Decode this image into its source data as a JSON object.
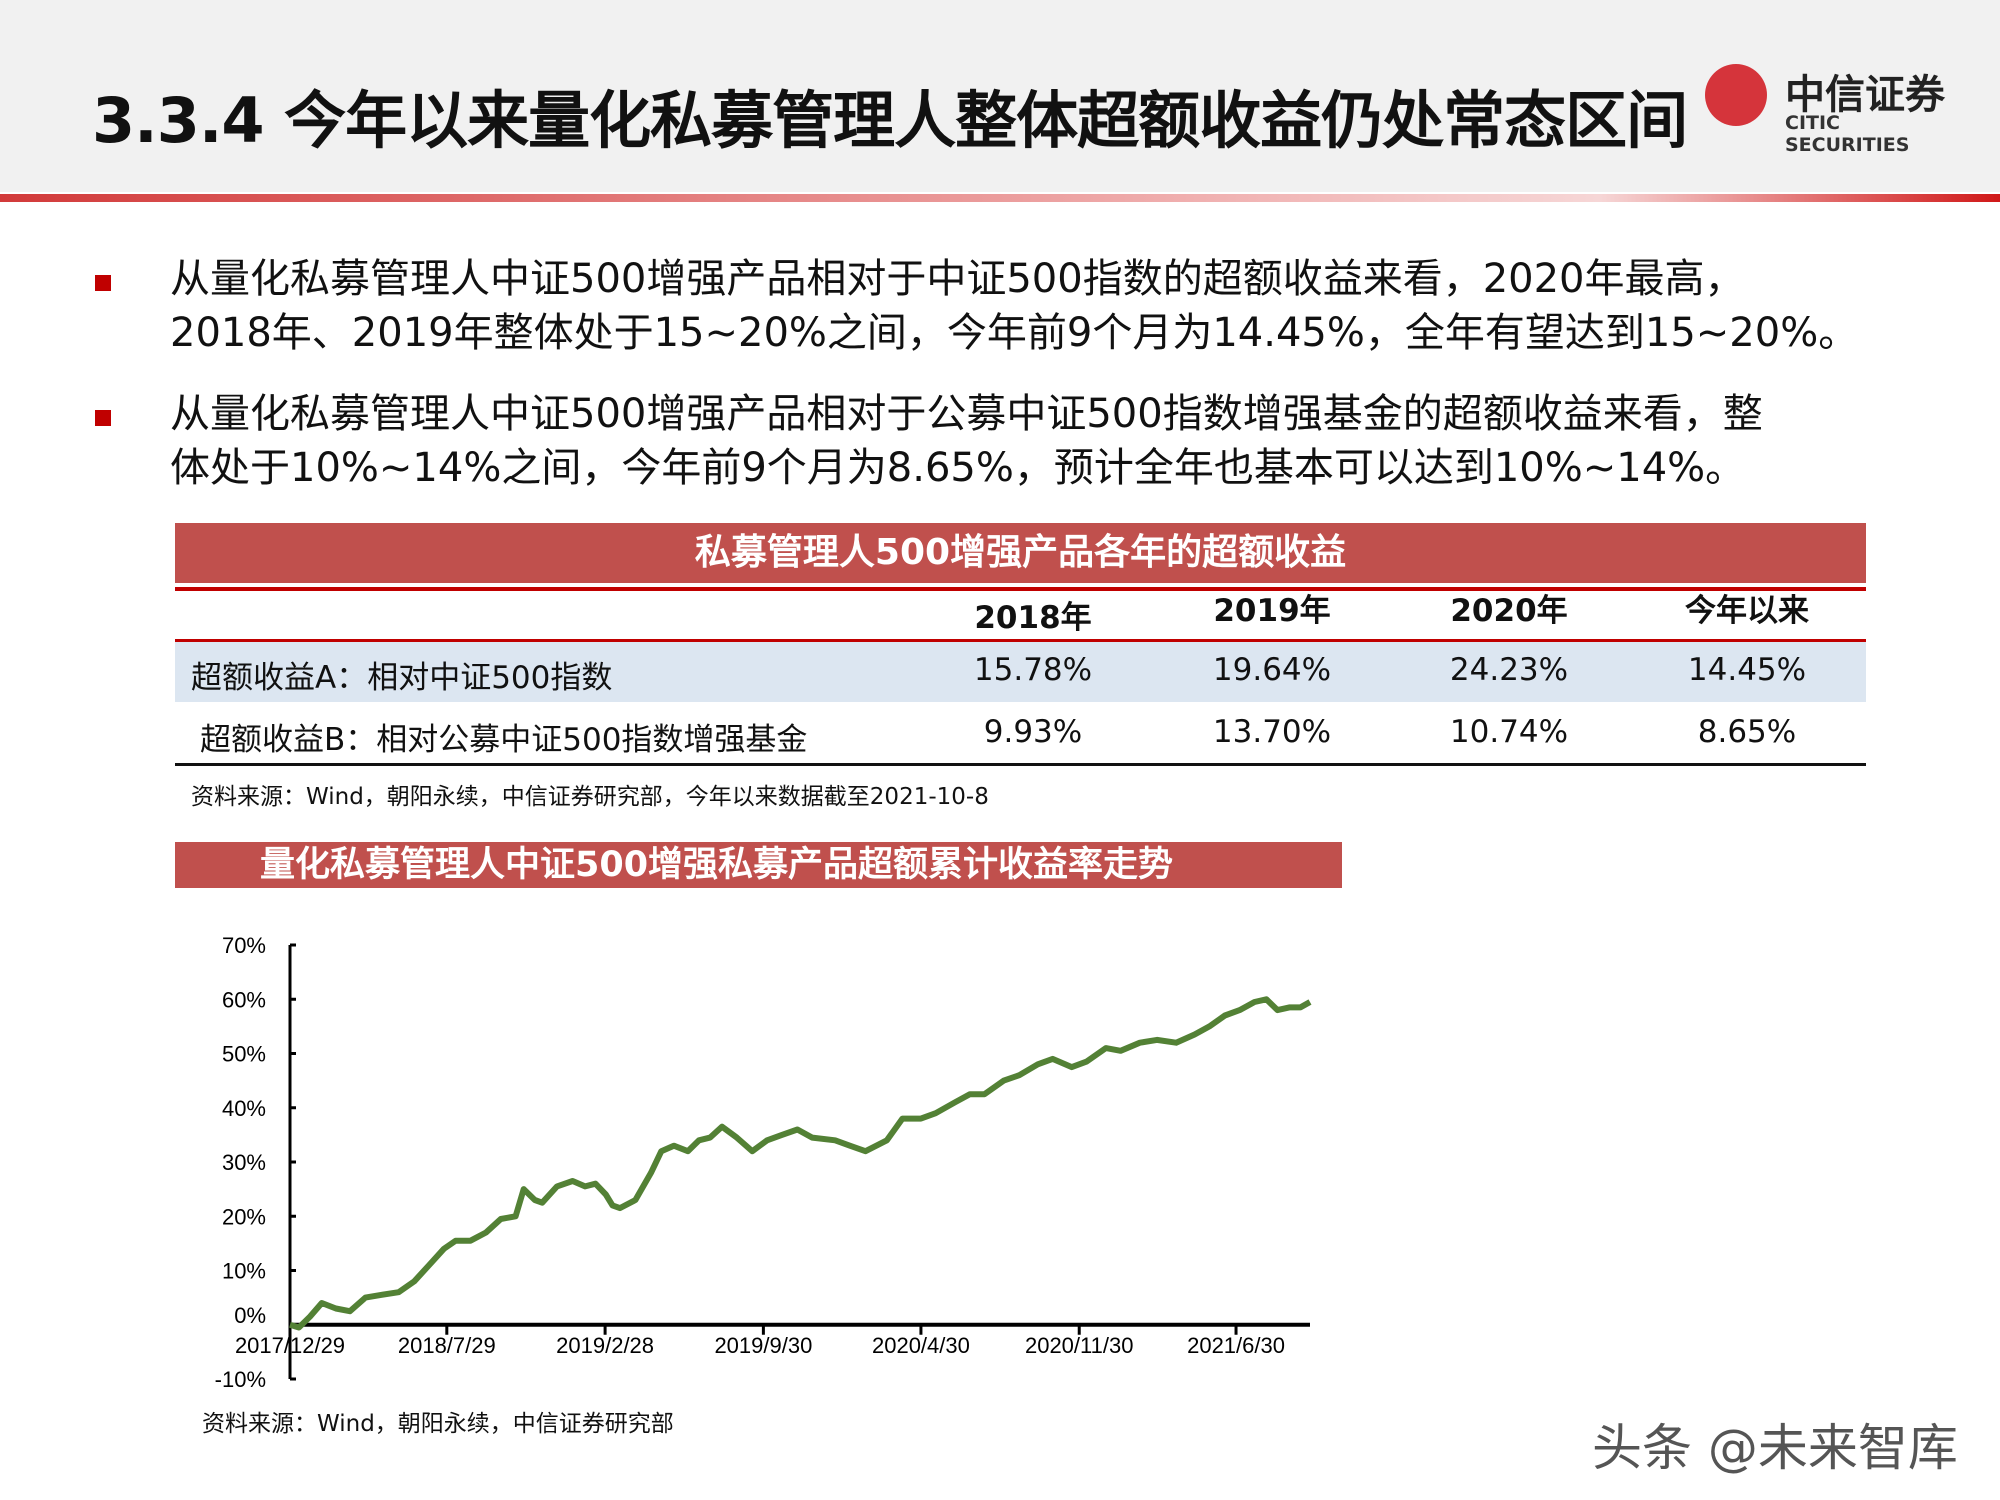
{
  "header": {
    "title": "3.3.4 今年以来量化私募管理人整体超额收益仍处常态区间",
    "logo_cn": "中信证券",
    "logo_en": "CITIC SECURITIES"
  },
  "bullets": [
    {
      "lines": [
        "从量化私募管理人中证500增强产品相对于中证500指数的超额收益来看，2020年最高，",
        "2018年、2019年整体处于15~20%之间，今年前9个月为14.45%，全年有望达到15~20%。"
      ]
    },
    {
      "lines": [
        "从量化私募管理人中证500增强产品相对于公募中证500指数增强基金的超额收益来看，整",
        "体处于10%~14%之间，今年前9个月为8.65%，预计全年也基本可以达到10%~14%。"
      ]
    }
  ],
  "table": {
    "title": "私募管理人500增强产品各年的超额收益",
    "columns": [
      "2018年",
      "2019年",
      "2020年",
      "今年以来"
    ],
    "rows": [
      {
        "label": "超额收益A：相对中证500指数",
        "values": [
          "15.78%",
          "19.64%",
          "24.23%",
          "14.45%"
        ]
      },
      {
        "label": "超额收益B：相对公募中证500指数增强基金",
        "values": [
          "9.93%",
          "13.70%",
          "10.74%",
          "8.65%"
        ]
      }
    ],
    "source": "资料来源：Wind，朝阳永续，中信证券研究部，今年以来数据截至2021-10-8"
  },
  "chart_title": "量化私募管理人中证500增强私募产品超额累计收益率走势",
  "chart_data": {
    "type": "line",
    "color": "#538135",
    "ylim": [
      -10,
      70
    ],
    "y_ticks": [
      "70%",
      "60%",
      "50%",
      "40%",
      "30%",
      "20%",
      "10%",
      "0%",
      "-10%"
    ],
    "x_ticks": [
      "2017/12/29",
      "2018/7/29",
      "2019/2/28",
      "2019/9/30",
      "2020/4/30",
      "2020/11/30",
      "2021/6/30"
    ],
    "xlim": [
      "2017-12-29",
      "2021-10-08"
    ],
    "grid": false,
    "x": [
      "2017-12-29",
      "2018-01-10",
      "2018-01-25",
      "2018-02-10",
      "2018-03-01",
      "2018-03-20",
      "2018-04-10",
      "2018-05-01",
      "2018-05-25",
      "2018-06-15",
      "2018-07-05",
      "2018-07-25",
      "2018-08-10",
      "2018-08-30",
      "2018-09-20",
      "2018-10-10",
      "2018-10-30",
      "2018-11-10",
      "2018-11-25",
      "2018-12-05",
      "2018-12-25",
      "2019-01-15",
      "2019-02-01",
      "2019-02-15",
      "2019-03-01",
      "2019-03-10",
      "2019-03-20",
      "2019-04-10",
      "2019-05-01",
      "2019-05-15",
      "2019-06-01",
      "2019-06-20",
      "2019-07-05",
      "2019-07-20",
      "2019-08-05",
      "2019-08-25",
      "2019-09-15",
      "2019-10-05",
      "2019-10-25",
      "2019-11-15",
      "2019-12-05",
      "2020-01-05",
      "2020-01-25",
      "2020-02-15",
      "2020-03-15",
      "2020-04-05",
      "2020-04-30",
      "2020-05-20",
      "2020-06-15",
      "2020-07-05",
      "2020-07-25",
      "2020-08-20",
      "2020-09-10",
      "2020-10-05",
      "2020-10-25",
      "2020-11-20",
      "2020-12-10",
      "2021-01-05",
      "2021-01-25",
      "2021-02-20",
      "2021-03-15",
      "2021-04-10",
      "2021-05-05",
      "2021-05-25",
      "2021-06-15",
      "2021-07-05",
      "2021-07-25",
      "2021-08-10",
      "2021-08-25",
      "2021-09-10",
      "2021-09-25",
      "2021-10-08"
    ],
    "y": [
      0,
      -0.5,
      1.5,
      4,
      3,
      2.5,
      5,
      5.5,
      6,
      8,
      11,
      14,
      15.5,
      15.5,
      17,
      19.5,
      20,
      25,
      23,
      22.5,
      25.5,
      26.5,
      25.5,
      26,
      24,
      22,
      21.5,
      23,
      28,
      32,
      33,
      32,
      34,
      34.5,
      36.5,
      34.5,
      32,
      34,
      35,
      36,
      34.5,
      34,
      33,
      32,
      34,
      38,
      38,
      39,
      41,
      42.5,
      42.5,
      45,
      46,
      48,
      49,
      47.5,
      48.5,
      51,
      50.5,
      52,
      52.5,
      52,
      53.5,
      55,
      57,
      58,
      59.5,
      60,
      58,
      58.5,
      58.5,
      59.5
    ]
  },
  "chart_source": "资料来源：Wind，朝阳永续，中信证券研究部",
  "watermark": "头条 @未来智库"
}
